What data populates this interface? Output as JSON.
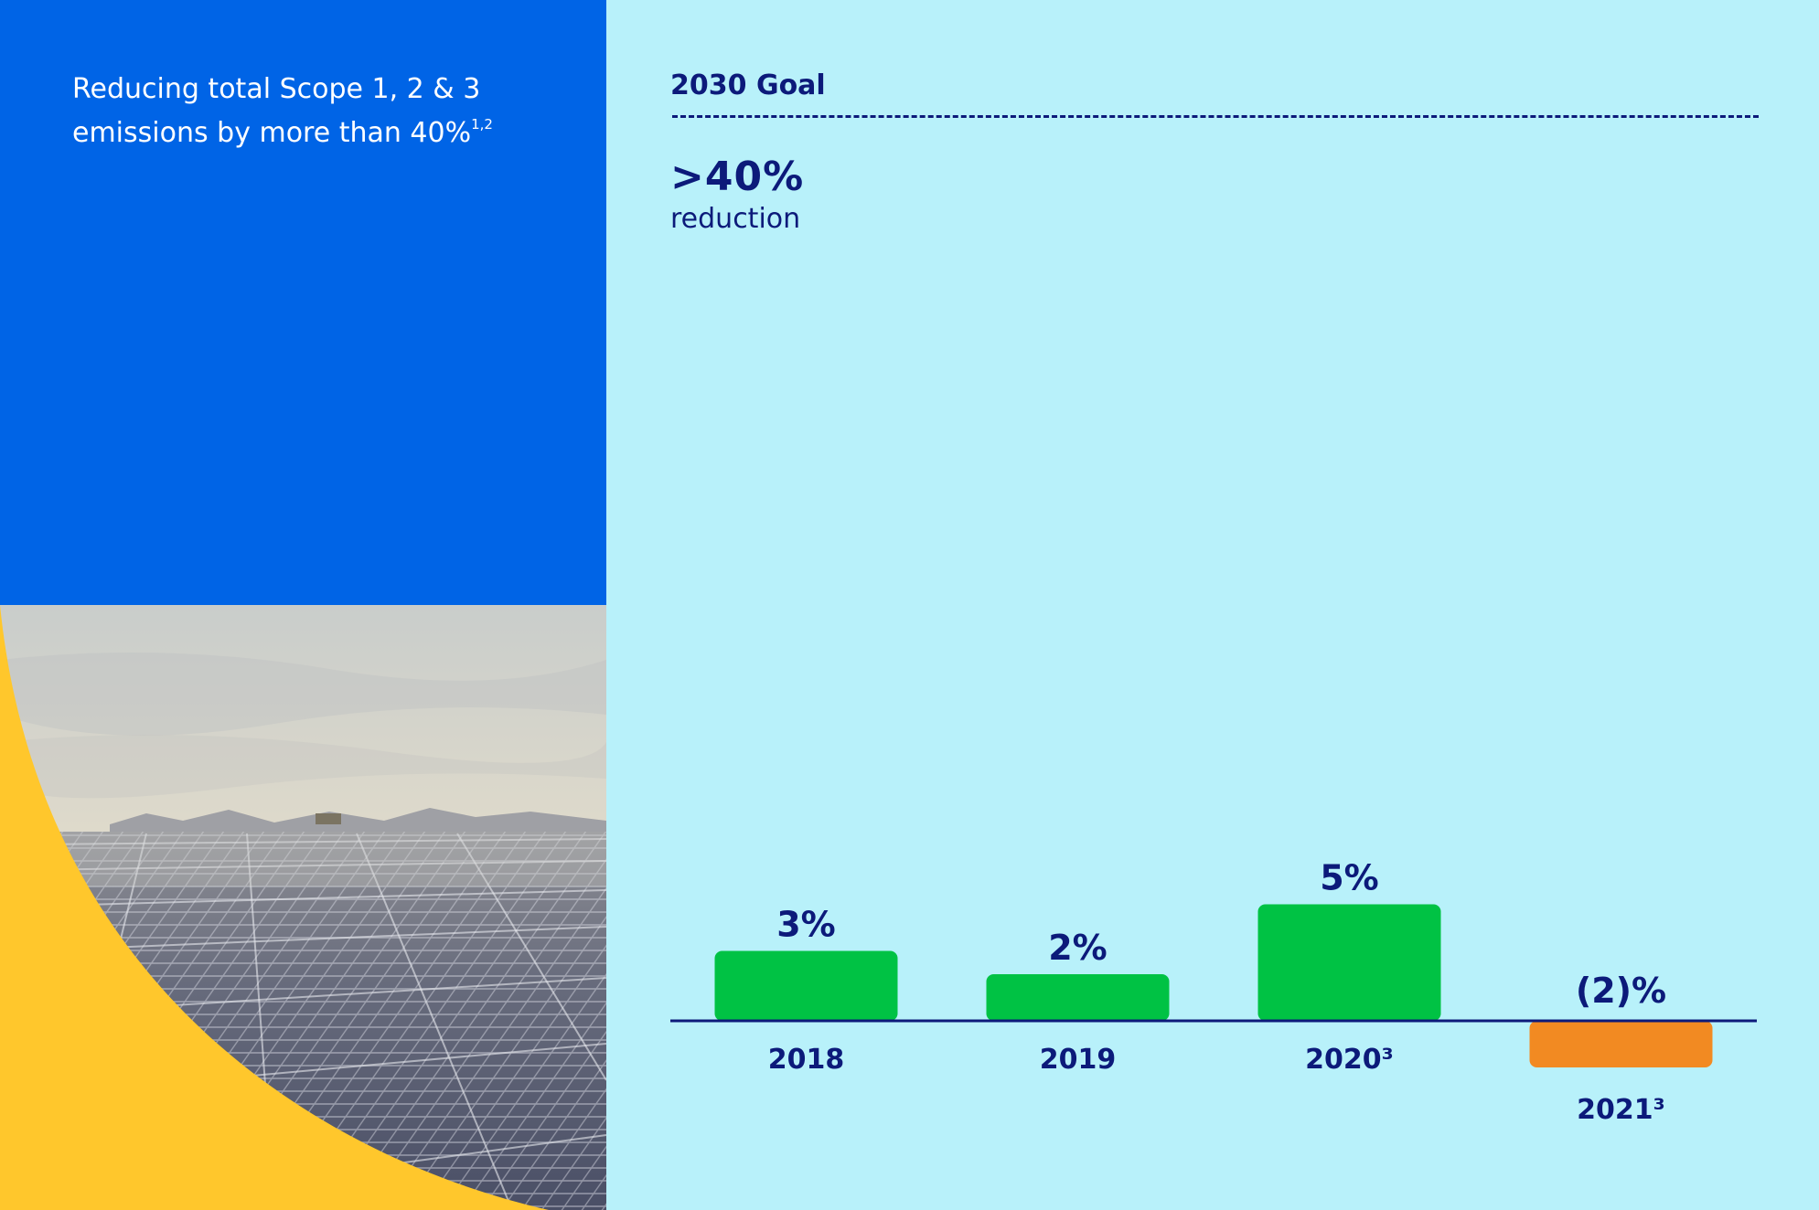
{
  "headline": {
    "line1": "Reducing total Scope 1, 2 & 3",
    "line2": "emissions by more than 40%",
    "footnote": "1,2"
  },
  "goal": {
    "title": "2030 Goal",
    "value": ">40%",
    "subtitle": "reduction"
  },
  "colors": {
    "left_blue": "#0064e6",
    "background": "#b8f1fa",
    "accent_yellow": "#ffc72c",
    "ink": "#0c1a7a",
    "positive_bar": "#00c244",
    "negative_bar": "#f28a22"
  },
  "chart_data": {
    "type": "bar",
    "categories": [
      "2018",
      "2019",
      "2020³",
      "2021³"
    ],
    "values": [
      3,
      2,
      5,
      -2
    ],
    "value_labels": [
      "3%",
      "2%",
      "5%",
      "(2)%"
    ],
    "ylabel": "",
    "xlabel": "",
    "grid": false,
    "legend": "none"
  }
}
